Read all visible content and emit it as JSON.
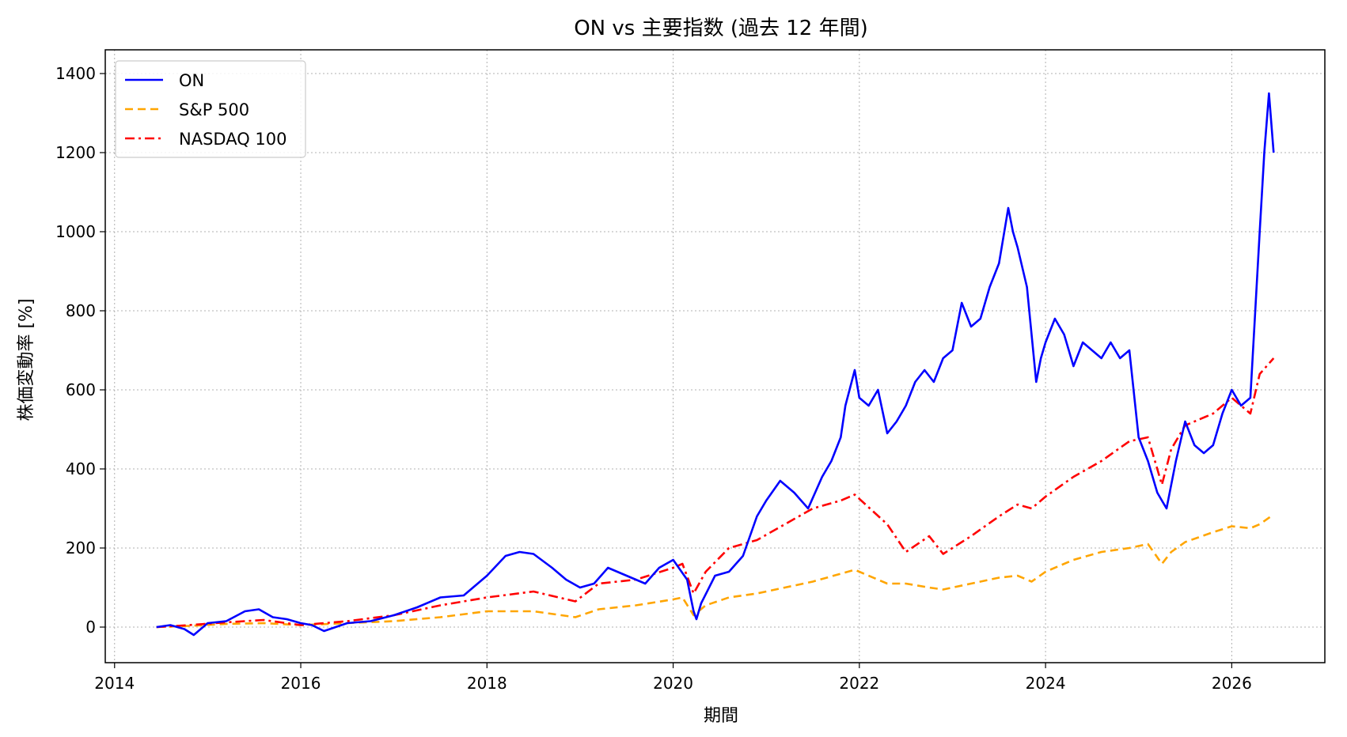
{
  "chart_data": {
    "type": "line",
    "title": "ON vs 主要指数 (過去 12 年間)",
    "xlabel": "期間",
    "ylabel": "株価変動率 [%]",
    "xlim": [
      2013.9,
      2027.0
    ],
    "ylim": [
      -90,
      1460
    ],
    "xticks": [
      2014,
      2016,
      2018,
      2020,
      2022,
      2024,
      2026
    ],
    "yticks": [
      0,
      200,
      400,
      600,
      800,
      1000,
      1200,
      1400
    ],
    "grid": true,
    "legend_position": "top-left",
    "series": [
      {
        "name": "ON",
        "color": "#0000ff",
        "dash": "solid",
        "x": [
          2014.45,
          2014.6,
          2014.75,
          2014.85,
          2015.0,
          2015.2,
          2015.4,
          2015.55,
          2015.7,
          2015.85,
          2016.0,
          2016.12,
          2016.25,
          2016.5,
          2016.75,
          2017.0,
          2017.25,
          2017.5,
          2017.75,
          2018.0,
          2018.2,
          2018.35,
          2018.5,
          2018.7,
          2018.85,
          2019.0,
          2019.15,
          2019.3,
          2019.5,
          2019.7,
          2019.85,
          2020.0,
          2020.15,
          2020.22,
          2020.25,
          2020.3,
          2020.45,
          2020.6,
          2020.75,
          2020.9,
          2021.0,
          2021.15,
          2021.3,
          2021.45,
          2021.6,
          2021.7,
          2021.8,
          2021.85,
          2021.95,
          2022.0,
          2022.1,
          2022.2,
          2022.3,
          2022.4,
          2022.5,
          2022.6,
          2022.7,
          2022.8,
          2022.9,
          2023.0,
          2023.1,
          2023.2,
          2023.3,
          2023.4,
          2023.5,
          2023.6,
          2023.65,
          2023.7,
          2023.8,
          2023.9,
          2023.95,
          2024.0,
          2024.1,
          2024.2,
          2024.3,
          2024.4,
          2024.5,
          2024.6,
          2024.7,
          2024.8,
          2024.9,
          2025.0,
          2025.1,
          2025.2,
          2025.25,
          2025.3,
          2025.4,
          2025.5,
          2025.6,
          2025.7,
          2025.8,
          2025.9,
          2026.0,
          2026.1,
          2026.2,
          2026.3,
          2026.35,
          2026.4,
          2026.45
        ],
        "y": [
          0,
          5,
          -5,
          -20,
          10,
          15,
          40,
          45,
          25,
          20,
          10,
          5,
          -10,
          10,
          15,
          30,
          50,
          75,
          80,
          130,
          180,
          190,
          185,
          150,
          120,
          100,
          110,
          150,
          130,
          110,
          150,
          170,
          120,
          40,
          20,
          60,
          130,
          140,
          180,
          280,
          320,
          370,
          340,
          300,
          380,
          420,
          480,
          560,
          650,
          580,
          560,
          600,
          490,
          520,
          560,
          620,
          650,
          620,
          680,
          700,
          820,
          760,
          780,
          860,
          920,
          1060,
          1000,
          960,
          860,
          620,
          680,
          720,
          780,
          740,
          660,
          720,
          700,
          680,
          720,
          680,
          700,
          480,
          420,
          340,
          320,
          300,
          420,
          520,
          460,
          440,
          460,
          540,
          600,
          560,
          580,
          1000,
          1200,
          1350,
          1200
        ]
      },
      {
        "name": "S&P 500",
        "color": "#ffa500",
        "dash": "dashed",
        "x": [
          2014.45,
          2014.8,
          2015.2,
          2015.6,
          2016.0,
          2016.5,
          2017.0,
          2017.5,
          2018.0,
          2018.5,
          2018.95,
          2019.2,
          2019.6,
          2020.0,
          2020.1,
          2020.22,
          2020.35,
          2020.6,
          2020.9,
          2021.2,
          2021.5,
          2021.8,
          2021.95,
          2022.3,
          2022.5,
          2022.75,
          2022.9,
          2023.2,
          2023.5,
          2023.7,
          2023.85,
          2024.0,
          2024.3,
          2024.6,
          2024.9,
          2025.1,
          2025.25,
          2025.35,
          2025.5,
          2025.8,
          2026.0,
          2026.2,
          2026.3,
          2026.45
        ],
        "y": [
          0,
          3,
          8,
          10,
          5,
          10,
          15,
          25,
          40,
          40,
          25,
          45,
          55,
          70,
          75,
          30,
          55,
          75,
          85,
          100,
          115,
          135,
          145,
          110,
          110,
          100,
          95,
          110,
          125,
          130,
          115,
          140,
          170,
          190,
          200,
          210,
          160,
          190,
          215,
          240,
          255,
          250,
          260,
          285
        ]
      },
      {
        "name": "NASDAQ 100",
        "color": "#ff0000",
        "dash": "dashdot",
        "x": [
          2014.45,
          2014.8,
          2015.2,
          2015.6,
          2016.0,
          2016.5,
          2017.0,
          2017.5,
          2018.0,
          2018.5,
          2018.95,
          2019.2,
          2019.6,
          2020.0,
          2020.1,
          2020.22,
          2020.35,
          2020.6,
          2020.9,
          2021.2,
          2021.5,
          2021.8,
          2021.95,
          2022.3,
          2022.5,
          2022.75,
          2022.9,
          2023.2,
          2023.5,
          2023.7,
          2023.85,
          2024.0,
          2024.3,
          2024.6,
          2024.9,
          2025.1,
          2025.25,
          2025.35,
          2025.5,
          2025.8,
          2026.0,
          2026.2,
          2026.3,
          2026.45
        ],
        "y": [
          0,
          5,
          12,
          18,
          5,
          15,
          30,
          55,
          75,
          90,
          65,
          110,
          120,
          150,
          160,
          85,
          140,
          200,
          220,
          260,
          300,
          320,
          335,
          260,
          190,
          230,
          185,
          230,
          280,
          310,
          300,
          330,
          380,
          420,
          470,
          480,
          360,
          450,
          510,
          540,
          580,
          540,
          640,
          680
        ]
      }
    ]
  }
}
